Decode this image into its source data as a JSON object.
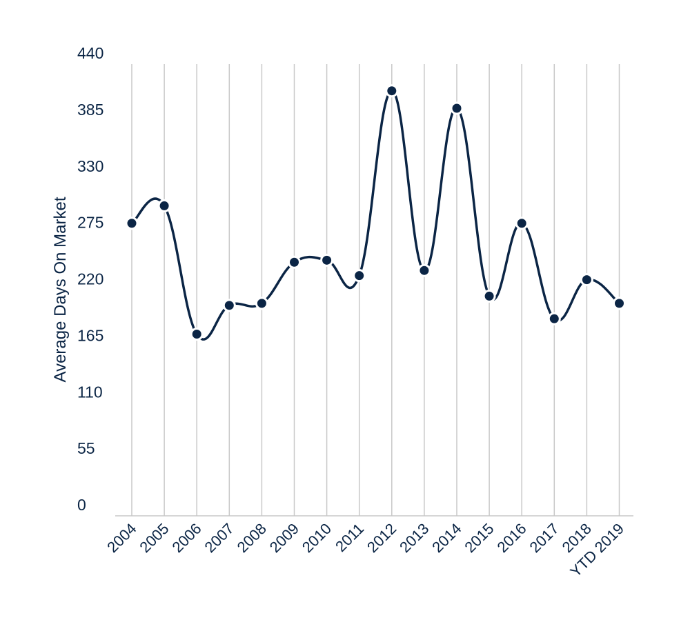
{
  "chart_data": {
    "type": "line",
    "title": "",
    "xlabel": "",
    "ylabel": "Average Days On Market",
    "categories": [
      "2004",
      "2005",
      "2006",
      "2007",
      "2008",
      "2009",
      "2010",
      "2011",
      "2012",
      "2013",
      "2014",
      "2015",
      "2016",
      "2017",
      "2018",
      "YTD 2019"
    ],
    "series": [
      {
        "values": [
          285,
          302,
          177,
          205,
          207,
          247,
          249,
          234,
          414,
          239,
          397,
          214,
          285,
          192,
          230,
          207
        ]
      }
    ],
    "ylim": [
      0,
      440
    ],
    "yticks": [
      "0",
      "55",
      "110",
      "165",
      "220",
      "275",
      "330",
      "385",
      "440"
    ],
    "grid": "vertical",
    "line_color": "#0b2545",
    "smooth": true
  }
}
